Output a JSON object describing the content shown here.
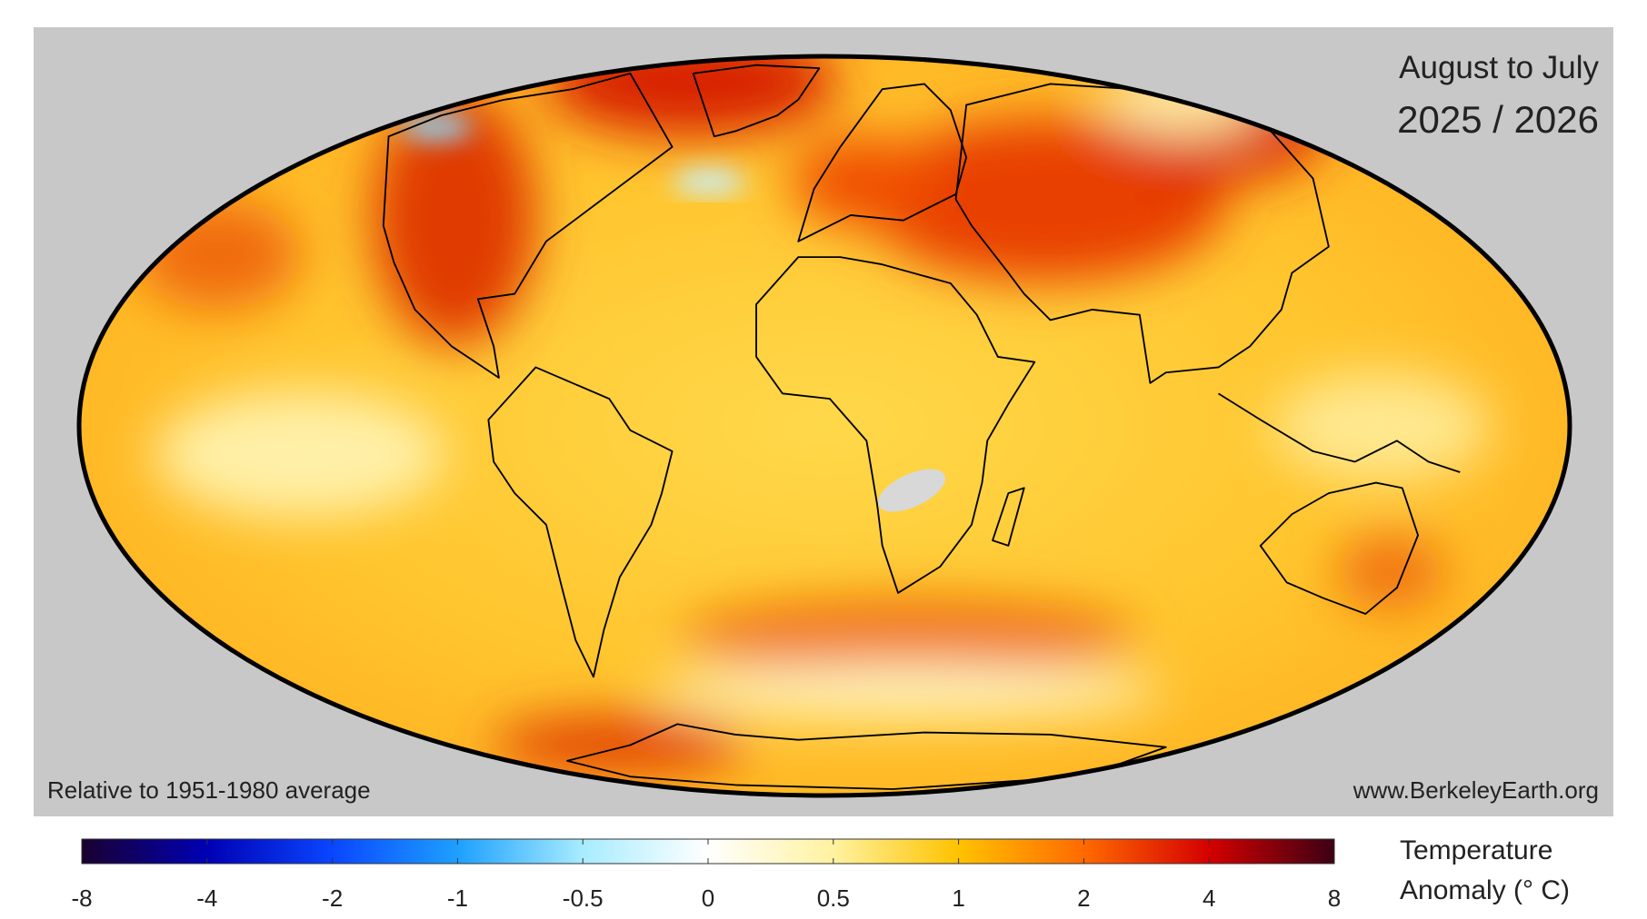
{
  "header": {
    "period": "August to July",
    "years": "2025 / 2026"
  },
  "notes": {
    "baseline": "Relative to 1951-1980 average",
    "source": "www.BerkeleyEarth.org"
  },
  "colorbar": {
    "ticks": [
      -8,
      -4,
      -2,
      -1,
      -0.5,
      0,
      0.5,
      1,
      2,
      4,
      8
    ],
    "colors": [
      "#1a0030",
      "#0000b4",
      "#0a46ff",
      "#1ea0ff",
      "#a8ecff",
      "#ffffff",
      "#fff2a0",
      "#ffc200",
      "#ff6a00",
      "#d40000",
      "#3c0014"
    ],
    "label": [
      "Temperature",
      "Anomaly (° C)"
    ]
  }
}
